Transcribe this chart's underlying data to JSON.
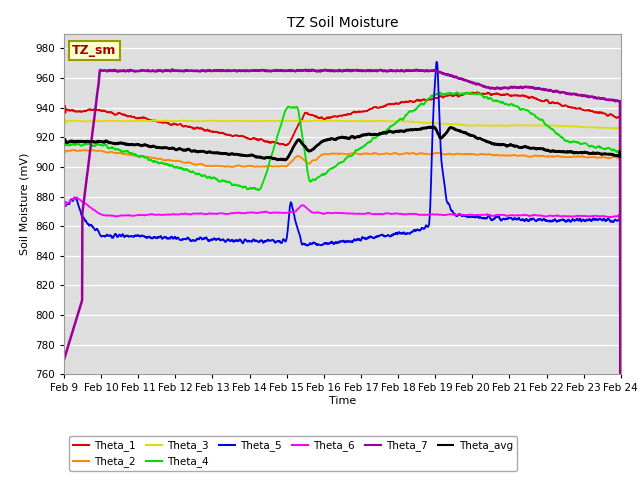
{
  "title": "TZ Soil Moisture",
  "ylabel": "Soil Moisture (mV)",
  "xlabel": "Time",
  "ylim": [
    760,
    990
  ],
  "yticks": [
    760,
    780,
    800,
    820,
    840,
    860,
    880,
    900,
    920,
    940,
    960,
    980
  ],
  "xstart": 9,
  "xend": 24,
  "xtick_labels": [
    "Feb 9",
    "Feb 10",
    "Feb 11",
    "Feb 12",
    "Feb 13",
    "Feb 14",
    "Feb 15",
    "Feb 16",
    "Feb 17",
    "Feb 18",
    "Feb 19",
    "Feb 20",
    "Feb 21",
    "Feb 22",
    "Feb 23",
    "Feb 24"
  ],
  "colors": {
    "Theta_1": "#dd0000",
    "Theta_2": "#ff8800",
    "Theta_3": "#dddd00",
    "Theta_4": "#00dd00",
    "Theta_5": "#0000ee",
    "Theta_6": "#ff00ff",
    "Theta_7": "#990099",
    "Theta_avg": "#000000"
  },
  "plot_bg_color": "#dedede",
  "label_box_text": "TZ_sm",
  "label_box_color": "#ffffcc",
  "label_box_edge": "#999900"
}
